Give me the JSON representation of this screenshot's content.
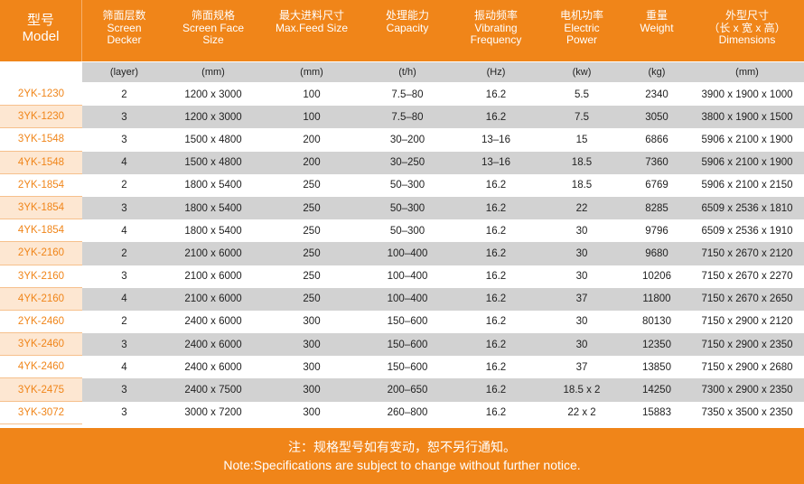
{
  "header": {
    "model": {
      "zh": "型号",
      "en": "Model"
    },
    "columns": [
      {
        "zh": "筛面层数",
        "en1": "Screen",
        "en2": "Decker"
      },
      {
        "zh": "筛面规格",
        "en1": "Screen Face",
        "en2": "Size"
      },
      {
        "zh": "最大进料尺寸",
        "en1": "Max.Feed Size",
        "en2": ""
      },
      {
        "zh": "处理能力",
        "en1": "Capacity",
        "en2": ""
      },
      {
        "zh": "振动频率",
        "en1": "Vibrating",
        "en2": "Frequency"
      },
      {
        "zh": "电机功率",
        "en1": "Electric",
        "en2": "Power"
      },
      {
        "zh": "重量",
        "en1": "Weight",
        "en2": ""
      },
      {
        "zh": "外型尺寸",
        "en1": "（长 x 宽 x 高）",
        "en2": "Dimensions"
      }
    ]
  },
  "units": [
    "(layer)",
    "(mm)",
    "(mm)",
    "(t/h)",
    "(Hz)",
    "(kw)",
    "(kg)",
    "(mm)"
  ],
  "rows": [
    {
      "model": "2YK-1230",
      "cells": [
        "2",
        "1200 x 3000",
        "100",
        "7.5–80",
        "16.2",
        "5.5",
        "2340",
        "3900 x 1900 x 1000"
      ]
    },
    {
      "model": "3YK-1230",
      "cells": [
        "3",
        "1200 x 3000",
        "100",
        "7.5–80",
        "16.2",
        "7.5",
        "3050",
        "3800 x 1900 x 1500"
      ]
    },
    {
      "model": "3YK-1548",
      "cells": [
        "3",
        "1500 x 4800",
        "200",
        "30–200",
        "13–16",
        "15",
        "6866",
        "5906 x 2100 x 1900"
      ]
    },
    {
      "model": "4YK-1548",
      "cells": [
        "4",
        "1500 x 4800",
        "200",
        "30–250",
        "13–16",
        "18.5",
        "7360",
        "5906 x 2100 x 1900"
      ]
    },
    {
      "model": "2YK-1854",
      "cells": [
        "2",
        "1800 x 5400",
        "250",
        "50–300",
        "16.2",
        "18.5",
        "6769",
        "5906 x 2100 x 2150"
      ]
    },
    {
      "model": "3YK-1854",
      "cells": [
        "3",
        "1800 x 5400",
        "250",
        "50–300",
        "16.2",
        "22",
        "8285",
        "6509 x 2536 x 1810"
      ]
    },
    {
      "model": "4YK-1854",
      "cells": [
        "4",
        "1800 x 5400",
        "250",
        "50–300",
        "16.2",
        "30",
        "9796",
        "6509 x 2536 x 1910"
      ]
    },
    {
      "model": "2YK-2160",
      "cells": [
        "2",
        "2100 x 6000",
        "250",
        "100–400",
        "16.2",
        "30",
        "9680",
        "7150 x 2670 x 2120"
      ]
    },
    {
      "model": "3YK-2160",
      "cells": [
        "3",
        "2100 x 6000",
        "250",
        "100–400",
        "16.2",
        "30",
        "10206",
        "7150 x 2670 x 2270"
      ]
    },
    {
      "model": "4YK-2160",
      "cells": [
        "4",
        "2100 x 6000",
        "250",
        "100–400",
        "16.2",
        "37",
        "11800",
        "7150 x 2670 x 2650"
      ]
    },
    {
      "model": "2YK-2460",
      "cells": [
        "2",
        "2400 x 6000",
        "300",
        "150–600",
        "16.2",
        "30",
        "80130",
        "7150 x 2900 x 2120"
      ]
    },
    {
      "model": "3YK-2460",
      "cells": [
        "3",
        "2400 x 6000",
        "300",
        "150–600",
        "16.2",
        "30",
        "12350",
        "7150 x 2900 x 2350"
      ]
    },
    {
      "model": "4YK-2460",
      "cells": [
        "4",
        "2400 x 6000",
        "300",
        "150–600",
        "16.2",
        "37",
        "13850",
        "7150 x 2900 x 2680"
      ]
    },
    {
      "model": "3YK-2475",
      "cells": [
        "3",
        "2400 x 7500",
        "300",
        "200–650",
        "16.2",
        "18.5 x 2",
        "14250",
        "7300 x 2900 x 2350"
      ]
    },
    {
      "model": "3YK-3072",
      "cells": [
        "3",
        "3000 x 7200",
        "300",
        "260–800",
        "16.2",
        "22 x 2",
        "15883",
        "7350 x 3500 x 2350"
      ]
    }
  ],
  "footer": {
    "zh": "注：规格型号如有变动，恕不另行通知。",
    "en": "Note:Specifications are subject to change without further notice."
  }
}
